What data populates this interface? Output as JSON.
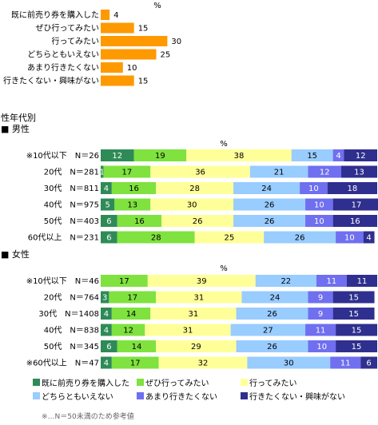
{
  "colors": {
    "already_bought": "#2e8b57",
    "definitely_go": "#7fe23f",
    "want_go": "#ffff99",
    "neither": "#99ccff",
    "not_really": "#6f6ff0",
    "dont_want": "#2f2f8f",
    "top_bar": "#ff9900"
  },
  "chart_data": [
    {
      "type": "bar",
      "unit_label": "%",
      "categories": [
        "既に前売り券を購入した",
        "ぜひ行ってみたい",
        "行ってみたい",
        "どちらともいえない",
        "あまり行きたくない",
        "行きたくない・興味がない"
      ],
      "values": [
        4,
        15,
        30,
        25,
        10,
        15
      ]
    },
    {
      "type": "bar",
      "stacked": true,
      "section_title": "性年代別",
      "group_label": "■ 男性",
      "unit_label": "%",
      "categories": [
        "※10代以下　N＝26",
        "20代　N＝281",
        "30代　N＝811",
        "40代　N＝975",
        "50代　N＝403",
        "60代以上　N＝231"
      ],
      "series": [
        {
          "name": "既に前売り券を購入した",
          "values": [
            12,
            1,
            4,
            5,
            6,
            6
          ]
        },
        {
          "name": "ぜひ行ってみたい",
          "values": [
            19,
            17,
            16,
            13,
            16,
            28
          ]
        },
        {
          "name": "行ってみたい",
          "values": [
            38,
            36,
            28,
            30,
            26,
            25
          ]
        },
        {
          "name": "どちらともいえない",
          "values": [
            15,
            21,
            24,
            26,
            26,
            26
          ]
        },
        {
          "name": "あまり行きたくない",
          "values": [
            4,
            12,
            10,
            10,
            10,
            10
          ]
        },
        {
          "name": "行きたくない・興味がない",
          "values": [
            12,
            13,
            18,
            17,
            16,
            4
          ]
        }
      ]
    },
    {
      "type": "bar",
      "stacked": true,
      "group_label": "■ 女性",
      "unit_label": "%",
      "categories": [
        "※10代以下　N＝46",
        "20代　N＝764",
        "30代　N＝1408",
        "40代　N＝838",
        "50代　N＝345",
        "※60代以上　N＝47"
      ],
      "series": [
        {
          "name": "既に前売り券を購入した",
          "values": [
            0,
            3,
            4,
            4,
            6,
            4
          ]
        },
        {
          "name": "ぜひ行ってみたい",
          "values": [
            17,
            17,
            14,
            12,
            14,
            17
          ]
        },
        {
          "name": "行ってみたい",
          "values": [
            39,
            31,
            31,
            31,
            29,
            32
          ]
        },
        {
          "name": "どちらともいえない",
          "values": [
            22,
            24,
            26,
            27,
            26,
            30
          ]
        },
        {
          "name": "あまり行きたくない",
          "values": [
            11,
            9,
            9,
            11,
            10,
            11
          ]
        },
        {
          "name": "行きたくない・興味がない",
          "values": [
            11,
            15,
            15,
            15,
            15,
            6
          ]
        }
      ]
    }
  ],
  "footnote": "※…N＝50未満のため参考値"
}
